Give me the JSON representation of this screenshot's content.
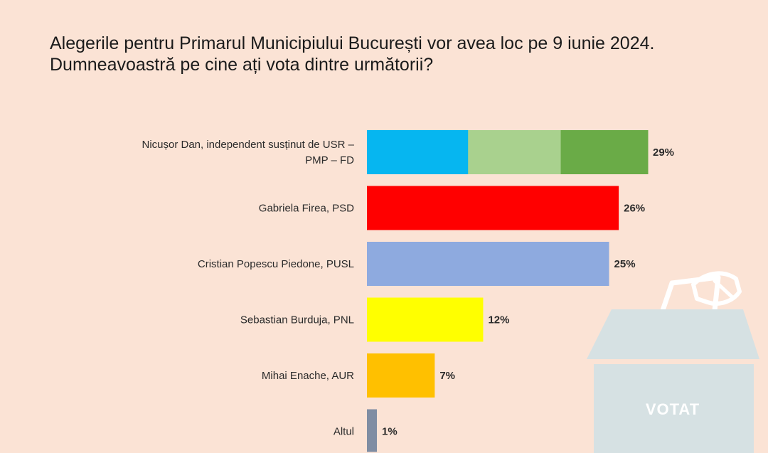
{
  "title": "Alegerile pentru Primarul Municipiului București vor avea loc pe 9 iunie 2024. Dumneavoastră pe cine ați vota dintre următorii?",
  "ballot_box": {
    "label": "VOTAT"
  },
  "colors": {
    "background": "#fbe3d5",
    "nicusor_segments": [
      "#06b6f0",
      "#a9d18e",
      "#6aab47"
    ],
    "firea": "#ff0000",
    "piedone": "#8eaadf",
    "burduja": "#ffff00",
    "enache": "#ffc000",
    "altul": "#7f8da3",
    "ballot_box": "#d6e1e3"
  },
  "chart_data": {
    "type": "bar",
    "orientation": "horizontal",
    "title": "Alegerile pentru Primarul Municipiului București vor avea loc pe 9 iunie 2024. Dumneavoastră pe cine ați vota dintre următorii?",
    "xlabel": "",
    "ylabel": "",
    "xlim": [
      0,
      29
    ],
    "grid": false,
    "categories": [
      "Nicușor Dan, independent susținut de USR – PMP – FD",
      "Gabriela Firea, PSD",
      "Cristian Popescu Piedone, PUSL",
      "Sebastian Burduja, PNL",
      "Mihai Enache, AUR",
      "Altul"
    ],
    "category_lines": [
      [
        "Nicușor Dan, independent susținut de USR –",
        "PMP – FD"
      ],
      [
        "Gabriela Firea, PSD"
      ],
      [
        "Cristian Popescu Piedone, PUSL"
      ],
      [
        "Sebastian Burduja, PNL"
      ],
      [
        "Mihai Enache, AUR"
      ],
      [
        "Altul"
      ]
    ],
    "values": [
      29,
      26,
      25,
      12,
      7,
      1
    ],
    "data_labels": [
      "29%",
      "26%",
      "25%",
      "12%",
      "7%",
      "1%"
    ],
    "colors": [
      "multi",
      "#ff0000",
      "#8eaadf",
      "#ffff00",
      "#ffc000",
      "#7f8da3"
    ]
  }
}
